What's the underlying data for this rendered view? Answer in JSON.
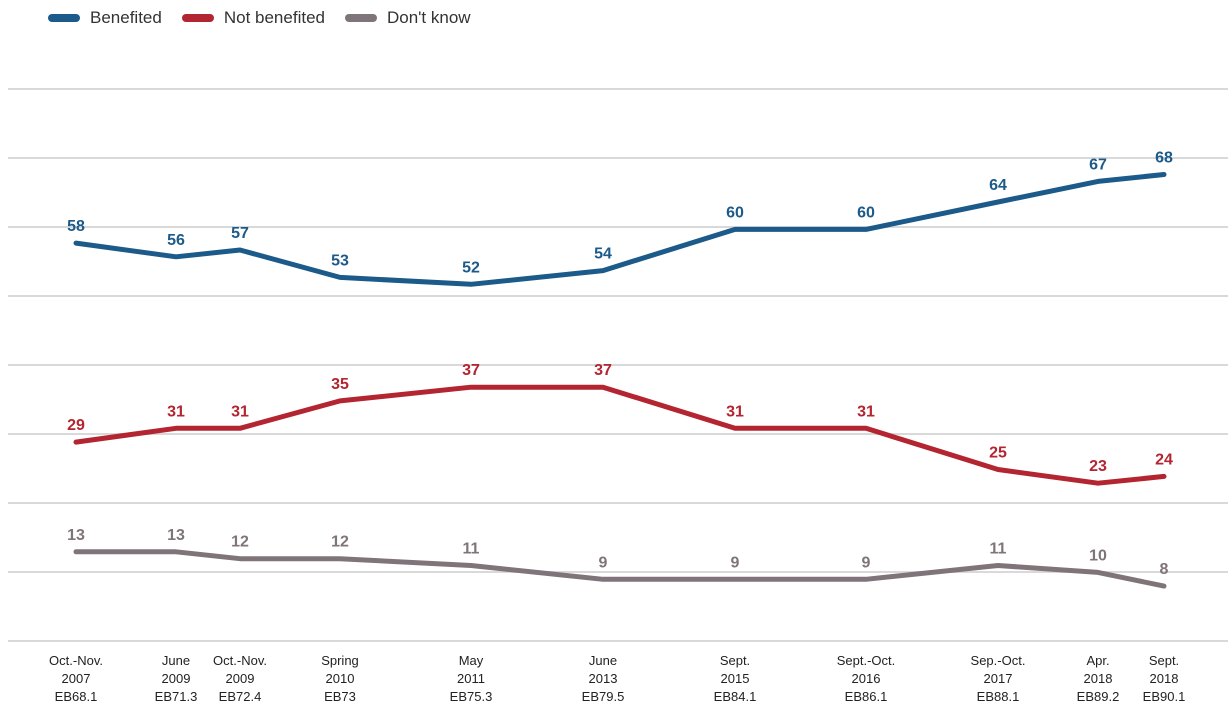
{
  "chart_data": {
    "type": "line",
    "x": [
      [
        "Oct.-Nov.",
        "2007",
        "EB68.1"
      ],
      [
        "June",
        "2009",
        "EB71.3"
      ],
      [
        "Oct.-Nov.",
        "2009",
        "EB72.4"
      ],
      [
        "Spring",
        "2010",
        "EB73"
      ],
      [
        "May",
        "2011",
        "EB75.3"
      ],
      [
        "June",
        "2013",
        "EB79.5"
      ],
      [
        "Sept.",
        "2015",
        "EB84.1"
      ],
      [
        "Sept.-Oct.",
        "2016",
        "EB86.1"
      ],
      [
        "Sep.-Oct.",
        "2017",
        "EB88.1"
      ],
      [
        "Apr.",
        "2018",
        "EB89.2"
      ],
      [
        "Sept.",
        "2018",
        "EB90.1"
      ]
    ],
    "series": [
      {
        "name": "Benefited",
        "color": "#1c5a8a",
        "values": [
          58,
          56,
          57,
          53,
          52,
          54,
          60,
          60,
          64,
          67,
          68
        ]
      },
      {
        "name": "Not benefited",
        "color": "#b32530",
        "values": [
          29,
          31,
          31,
          35,
          37,
          37,
          31,
          31,
          25,
          23,
          24
        ]
      },
      {
        "name": "Don't know",
        "color": "#7f7479",
        "values": [
          13,
          13,
          12,
          12,
          11,
          9,
          9,
          9,
          11,
          10,
          8
        ]
      }
    ],
    "legend_position": "top-left",
    "grid": true
  }
}
